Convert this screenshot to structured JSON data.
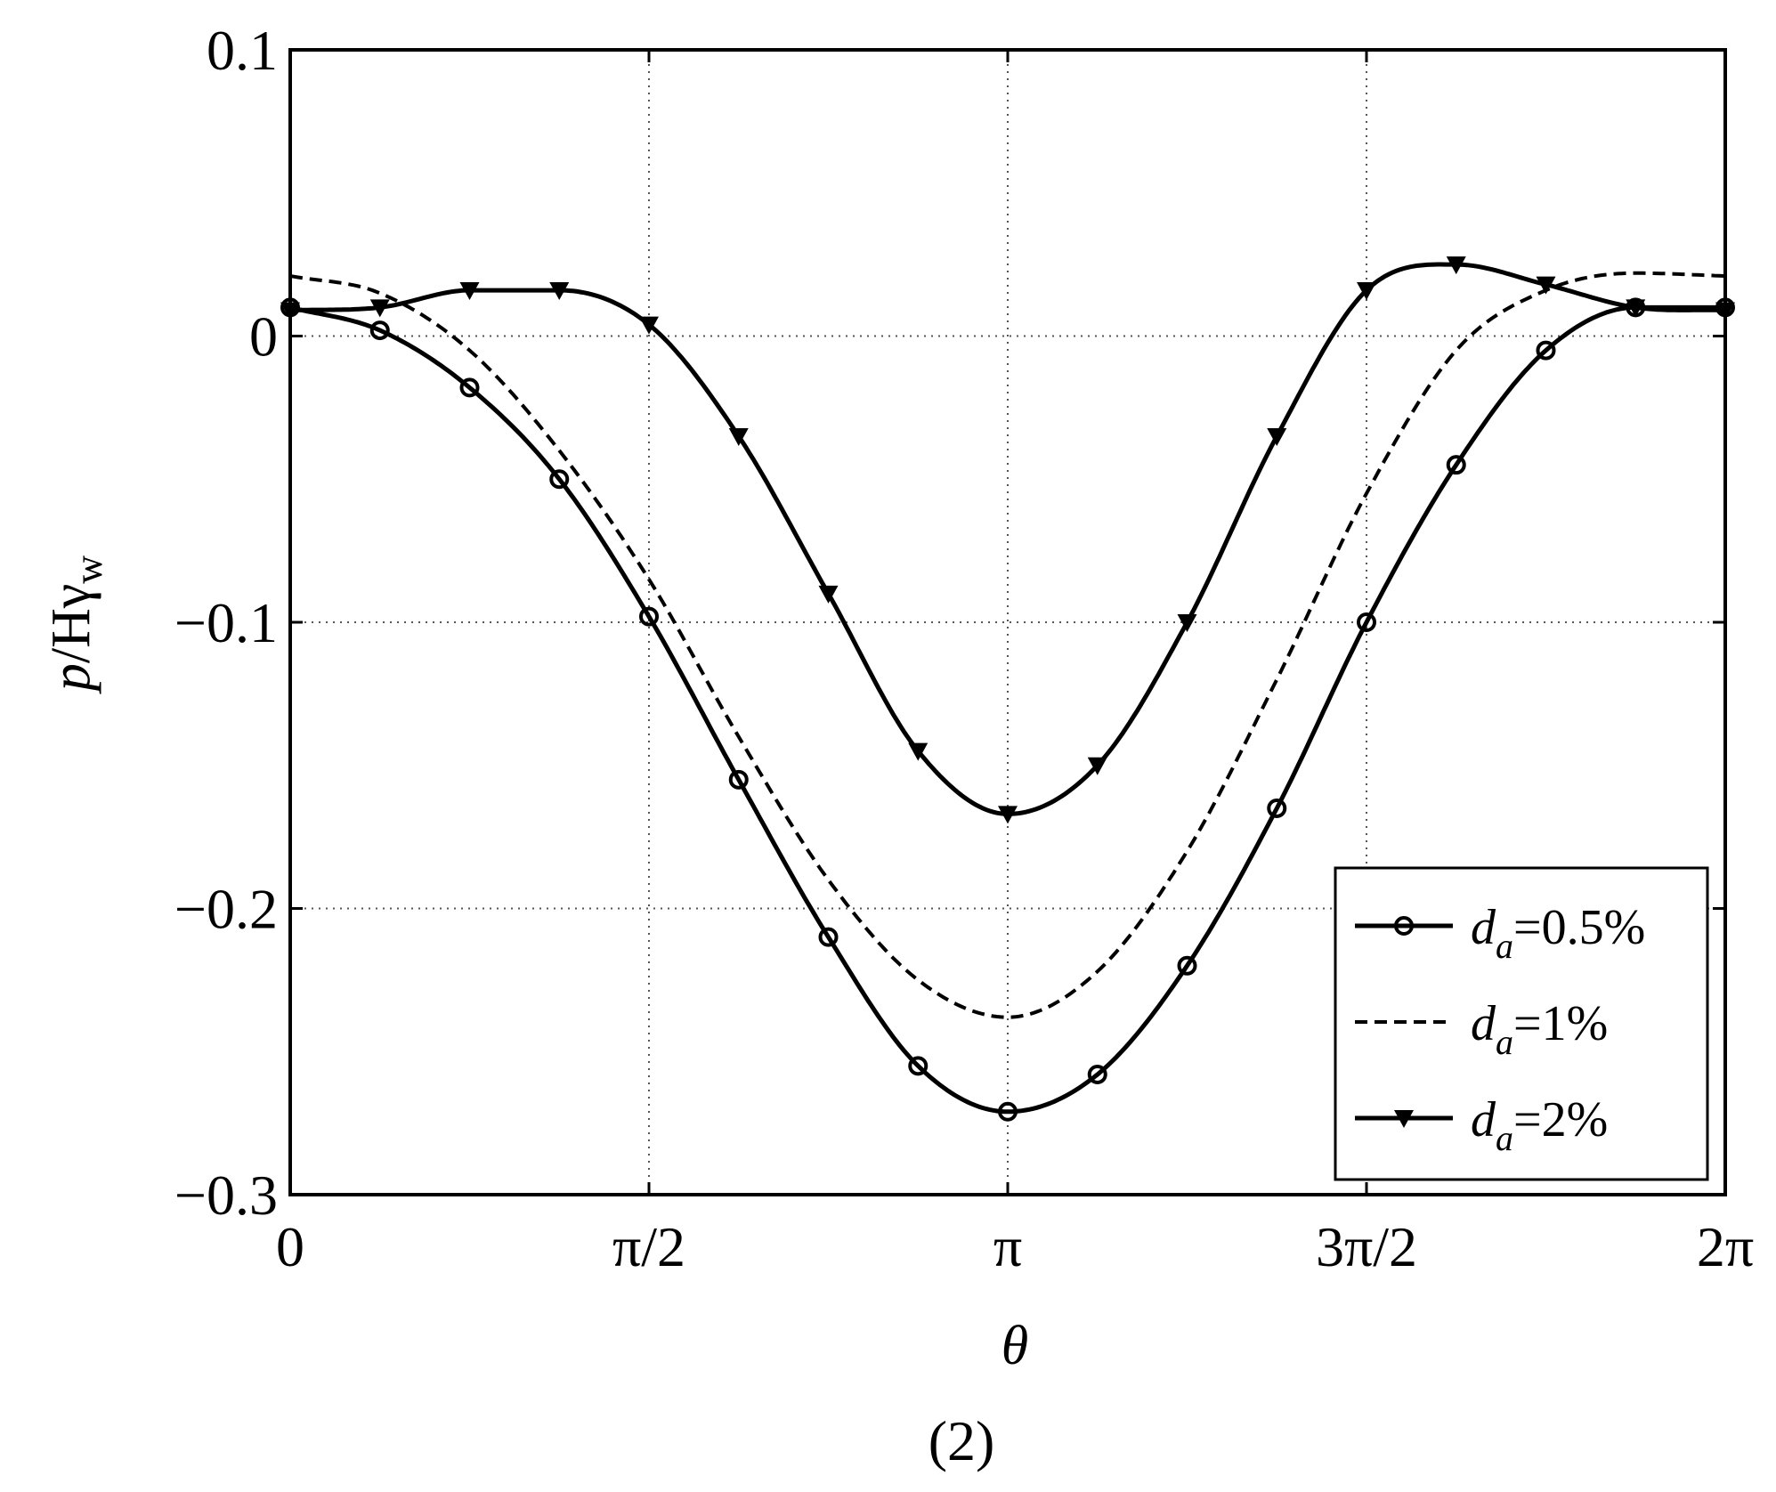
{
  "figure_label": "(2)",
  "chart_data": {
    "type": "line",
    "title": "",
    "xlabel": "θ",
    "ylabel_main": "p",
    "ylabel_rest": "/Hγ",
    "ylabel_sub": "w",
    "xlim": [
      0,
      6.2832
    ],
    "ylim": [
      -0.3,
      0.1
    ],
    "xtick_values": [
      0,
      1.5708,
      3.1416,
      4.7124,
      6.2832
    ],
    "xtick_labels": [
      "0",
      "π/2",
      "π",
      "3π/2",
      "2π"
    ],
    "ytick_values": [
      0.1,
      0,
      -0.1,
      -0.2,
      -0.3
    ],
    "ytick_labels": [
      "0.1",
      "0",
      "−0.1",
      "−0.2",
      "−0.3"
    ],
    "grid": true,
    "legend_position": "bottom-right",
    "series": [
      {
        "name_main": "d",
        "name_sub": "a",
        "name_rest": "=0.5%",
        "style": "solid-circle",
        "x": [
          0,
          0.3927,
          0.7854,
          1.1781,
          1.5708,
          1.9635,
          2.3562,
          2.7489,
          3.1416,
          3.5343,
          3.927,
          4.3197,
          4.7124,
          5.1051,
          5.4978,
          5.8905,
          6.2832
        ],
        "y": [
          0.01,
          0.002,
          -0.018,
          -0.05,
          -0.098,
          -0.155,
          -0.21,
          -0.255,
          -0.271,
          -0.258,
          -0.22,
          -0.165,
          -0.1,
          -0.045,
          -0.005,
          0.01,
          0.01
        ]
      },
      {
        "name_main": "d",
        "name_sub": "a",
        "name_rest": "=1%",
        "style": "dashed",
        "x": [
          0,
          0.3927,
          0.7854,
          1.1781,
          1.5708,
          1.9635,
          2.3562,
          2.7489,
          3.1416,
          3.5343,
          3.927,
          4.3197,
          4.7124,
          5.1051,
          5.4978,
          5.8905,
          6.2832
        ],
        "y": [
          0.021,
          0.015,
          -0.005,
          -0.04,
          -0.085,
          -0.14,
          -0.19,
          -0.225,
          -0.238,
          -0.222,
          -0.18,
          -0.12,
          -0.055,
          -0.005,
          0.016,
          0.022,
          0.021
        ]
      },
      {
        "name_main": "d",
        "name_sub": "a",
        "name_rest": "=2%",
        "style": "solid-triangle",
        "x": [
          0,
          0.3927,
          0.7854,
          1.1781,
          1.5708,
          1.9635,
          2.3562,
          2.7489,
          3.1416,
          3.5343,
          3.927,
          4.3197,
          4.7124,
          5.1051,
          5.4978,
          5.8905,
          6.2832
        ],
        "y": [
          0.009,
          0.01,
          0.016,
          0.016,
          0.004,
          -0.035,
          -0.09,
          -0.145,
          -0.167,
          -0.15,
          -0.1,
          -0.035,
          0.016,
          0.025,
          0.018,
          0.01,
          0.009
        ]
      }
    ]
  }
}
